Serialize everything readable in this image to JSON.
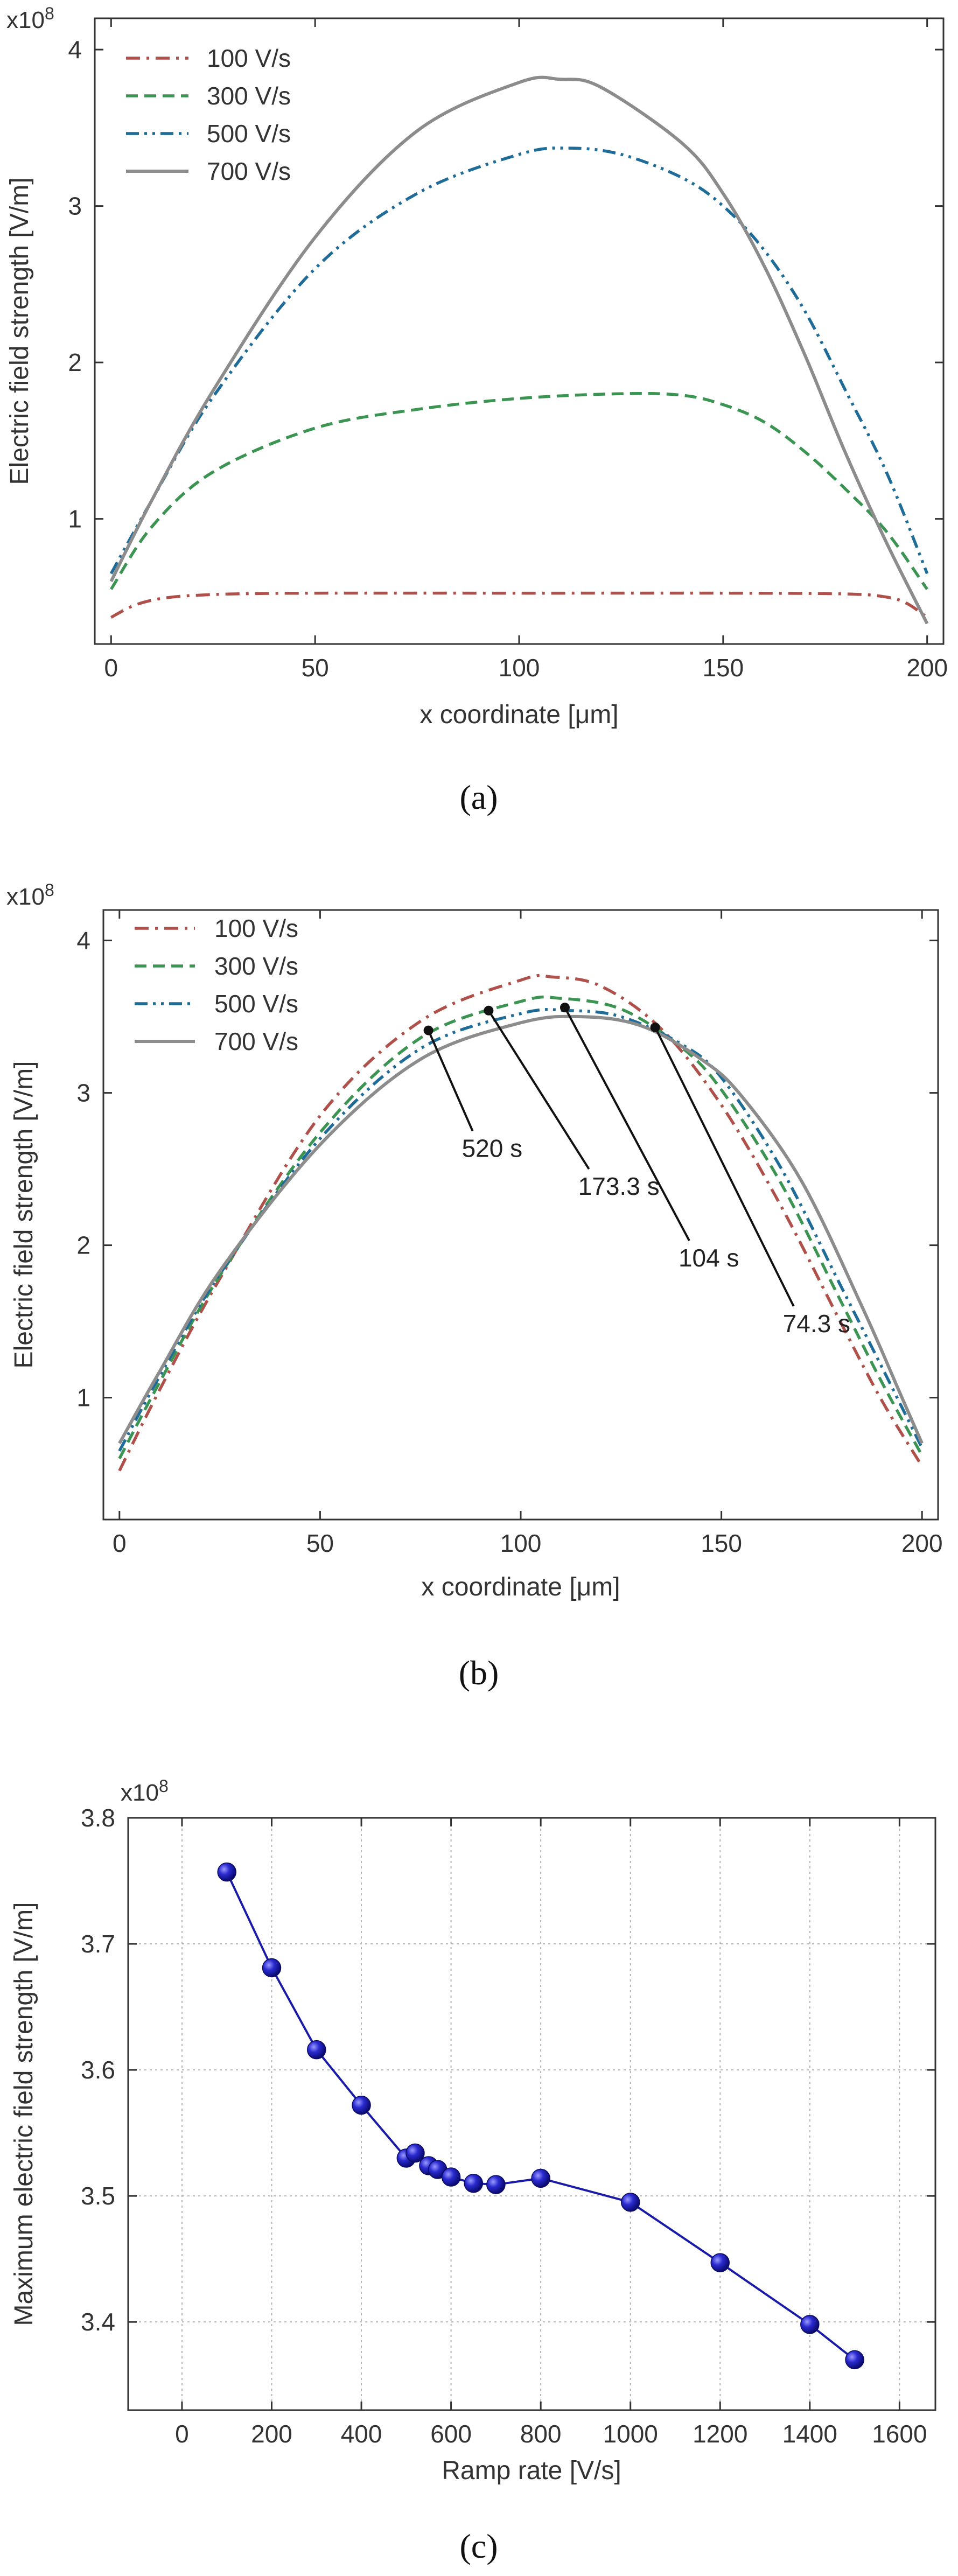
{
  "colors": {
    "s100": "#b0504a",
    "s300": "#3b9452",
    "s500": "#1f6c98",
    "s700": "#8c8c8c",
    "marker": "#1a1aa8",
    "grid": "#b4b4b4",
    "axis": "#333333"
  },
  "chart_data": [
    {
      "id": "a",
      "type": "line",
      "caption": "(a)",
      "xlabel": "x coordinate [μm]",
      "ylabel": "Electric field strength [V/m]",
      "multiplier": "x10",
      "multiplier_exp": "8",
      "xlim": [
        -4,
        204
      ],
      "ylim": [
        0.2,
        4.2
      ],
      "xticks": [
        0,
        50,
        100,
        150,
        200
      ],
      "yticks": [
        1,
        2,
        3,
        4
      ],
      "xtick_labels": [
        "0",
        "50",
        "100",
        "150",
        "200"
      ],
      "ytick_labels": [
        "1",
        "2",
        "3",
        "4"
      ],
      "grid": false,
      "legend_position": "top-left",
      "series": [
        {
          "name": "100 V/s",
          "style": "dashdot",
          "color_key": "s100",
          "x": [
            0,
            5,
            10,
            15,
            20,
            30,
            50,
            100,
            150,
            180,
            190,
            195,
            200
          ],
          "y": [
            0.37,
            0.44,
            0.48,
            0.5,
            0.51,
            0.52,
            0.525,
            0.525,
            0.525,
            0.52,
            0.5,
            0.46,
            0.37
          ]
        },
        {
          "name": "300 V/s",
          "style": "dashed",
          "color_key": "s300",
          "x": [
            0,
            10,
            25,
            50,
            75,
            100,
            125,
            140,
            150,
            160,
            170,
            180,
            190,
            200
          ],
          "y": [
            0.55,
            0.95,
            1.3,
            1.58,
            1.7,
            1.77,
            1.8,
            1.79,
            1.73,
            1.62,
            1.43,
            1.19,
            0.92,
            0.55
          ]
        },
        {
          "name": "500 V/s",
          "style": "dashdotdot",
          "color_key": "s500",
          "x": [
            0,
            10,
            25,
            50,
            75,
            100,
            112,
            125,
            140,
            150,
            160,
            170,
            180,
            190,
            200
          ],
          "y": [
            0.65,
            1.12,
            1.78,
            2.6,
            3.08,
            3.33,
            3.37,
            3.33,
            3.18,
            3.0,
            2.72,
            2.33,
            1.82,
            1.3,
            0.65
          ]
        },
        {
          "name": "700 V/s",
          "style": "solid",
          "color_key": "s700",
          "x": [
            0,
            10,
            25,
            50,
            75,
            100,
            110,
            120,
            140,
            150,
            160,
            170,
            180,
            190,
            200
          ],
          "y": [
            0.6,
            1.12,
            1.82,
            2.8,
            3.48,
            3.79,
            3.81,
            3.76,
            3.4,
            3.08,
            2.62,
            2.05,
            1.42,
            0.85,
            0.33
          ]
        }
      ]
    },
    {
      "id": "b",
      "type": "line",
      "caption": "(b)",
      "xlabel": "x coordinate [μm]",
      "ylabel": "Electric field strength [V/m]",
      "multiplier": "x10",
      "multiplier_exp": "8",
      "xlim": [
        -4,
        204
      ],
      "ylim": [
        0.2,
        4.2
      ],
      "xticks": [
        0,
        50,
        100,
        150,
        200
      ],
      "yticks": [
        1,
        2,
        3,
        4
      ],
      "xtick_labels": [
        "0",
        "50",
        "100",
        "150",
        "200"
      ],
      "ytick_labels": [
        "1",
        "2",
        "3",
        "4"
      ],
      "grid": false,
      "legend_position": "top-left",
      "series": [
        {
          "name": "100 V/s",
          "style": "dashdot",
          "color_key": "s100",
          "x": [
            0,
            10,
            25,
            50,
            75,
            100,
            108,
            120,
            135,
            150,
            165,
            180,
            190,
            200
          ],
          "y": [
            0.52,
            1.05,
            1.78,
            2.85,
            3.47,
            3.74,
            3.76,
            3.7,
            3.42,
            2.92,
            2.25,
            1.48,
            0.98,
            0.55
          ]
        },
        {
          "name": "300 V/s",
          "style": "dashed",
          "color_key": "s300",
          "x": [
            0,
            10,
            25,
            50,
            75,
            100,
            110,
            125,
            140,
            150,
            165,
            180,
            190,
            200
          ],
          "y": [
            0.6,
            1.1,
            1.8,
            2.74,
            3.36,
            3.6,
            3.62,
            3.55,
            3.3,
            3.02,
            2.4,
            1.62,
            1.1,
            0.62
          ]
        },
        {
          "name": "500 V/s",
          "style": "dashdotdot",
          "color_key": "s500",
          "x": [
            0,
            10,
            25,
            50,
            75,
            100,
            112,
            125,
            140,
            150,
            165,
            180,
            190,
            200
          ],
          "y": [
            0.65,
            1.14,
            1.81,
            2.7,
            3.29,
            3.52,
            3.54,
            3.5,
            3.32,
            3.1,
            2.5,
            1.72,
            1.2,
            0.67
          ]
        },
        {
          "name": "700 V/s",
          "style": "solid",
          "color_key": "s700",
          "x": [
            0,
            10,
            25,
            50,
            75,
            100,
            115,
            130,
            145,
            155,
            170,
            185,
            195,
            200
          ],
          "y": [
            0.7,
            1.17,
            1.83,
            2.66,
            3.22,
            3.46,
            3.5,
            3.44,
            3.22,
            2.98,
            2.42,
            1.6,
            1.0,
            0.7
          ]
        }
      ],
      "annotations": [
        {
          "text": "520 s",
          "point": [
            77,
            3.41
          ],
          "text_at": [
            88,
            2.75
          ]
        },
        {
          "text": "173.3 s",
          "point": [
            92,
            3.54
          ],
          "text_at": [
            117,
            2.5
          ]
        },
        {
          "text": "104 s",
          "point": [
            111,
            3.56
          ],
          "text_at": [
            142,
            2.03
          ]
        },
        {
          "text": "74.3 s",
          "point": [
            133.5,
            3.43
          ],
          "text_at": [
            168,
            1.6
          ]
        }
      ]
    },
    {
      "id": "c",
      "type": "line",
      "caption": "(c)",
      "xlabel": "Ramp rate [V/s]",
      "ylabel": "Maximum electric field strength [V/m]",
      "multiplier": "x10",
      "multiplier_exp": "8",
      "xlim": [
        -120,
        1680
      ],
      "ylim": [
        3.33,
        3.8
      ],
      "xticks": [
        0,
        200,
        400,
        600,
        800,
        1000,
        1200,
        1400,
        1600
      ],
      "yticks": [
        3.4,
        3.5,
        3.6,
        3.7,
        3.8
      ],
      "xtick_labels": [
        "0",
        "200",
        "400",
        "600",
        "800",
        "1000",
        "1200",
        "1400",
        "1600"
      ],
      "ytick_labels": [
        "3.4",
        "3.5",
        "3.6",
        "3.7",
        "3.8"
      ],
      "grid": true,
      "series": [
        {
          "name": "Maximum electric field strength",
          "style": "solid-markers",
          "color_key": "marker",
          "x": [
            100,
            200,
            300,
            400,
            500,
            520,
            550,
            570,
            600,
            650,
            700,
            800,
            1000,
            1200,
            1400,
            1500
          ],
          "y": [
            3.757,
            3.681,
            3.616,
            3.572,
            3.53,
            3.534,
            3.524,
            3.521,
            3.515,
            3.51,
            3.509,
            3.514,
            3.495,
            3.447,
            3.398,
            3.37
          ]
        }
      ]
    }
  ]
}
